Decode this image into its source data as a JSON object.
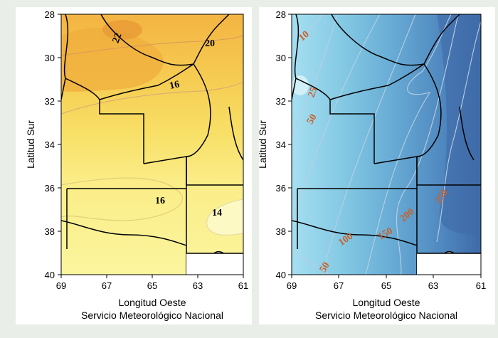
{
  "panels": [
    {
      "id": "left",
      "ylabel": "Latitud   Sur",
      "xlabel": "Longitud  Oeste",
      "credit": "Servicio Meteorológico Nacional",
      "x_ticks": [
        "69",
        "67",
        "65",
        "63",
        "61"
      ],
      "y_ticks": [
        "28",
        "30",
        "32",
        "34",
        "36",
        "38",
        "40"
      ],
      "contour_labels": [
        "22",
        "20",
        "16",
        "16",
        "14"
      ],
      "colors": {
        "low": "#fbf59a",
        "mid": "#f7d85a",
        "high": "#f5b740",
        "peak": "#eba136"
      }
    },
    {
      "id": "right",
      "ylabel": "Latitud   Sur",
      "xlabel": "Longitud  Oeste",
      "credit": "Servicio Meteorológico Nacional",
      "x_ticks": [
        "69",
        "67",
        "65",
        "63",
        "61"
      ],
      "y_ticks": [
        "28",
        "30",
        "32",
        "34",
        "36",
        "38",
        "40"
      ],
      "contour_labels": [
        "10",
        "25",
        "50",
        "100",
        "150",
        "200",
        "250",
        "50"
      ],
      "colors": {
        "low": "#a4ddf0",
        "mid": "#68b3d8",
        "high": "#4f8bc1",
        "peak": "#3f6eaa",
        "label": "#c8602a"
      }
    }
  ]
}
